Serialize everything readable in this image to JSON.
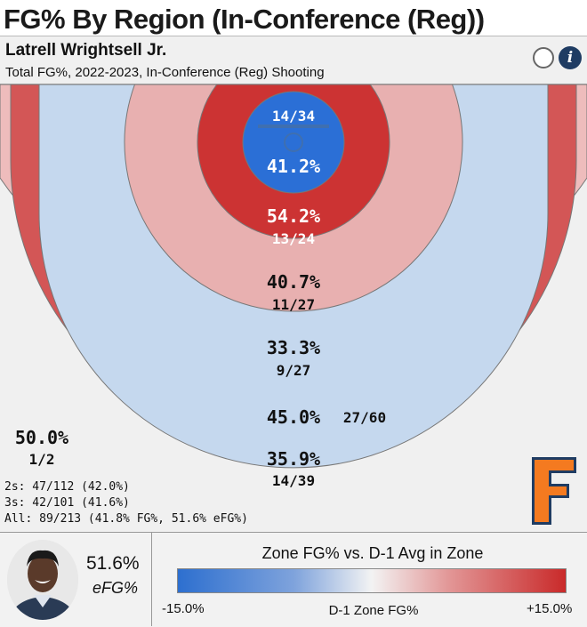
{
  "headline": "FG% By Region (In-Conference (Reg))",
  "player_name": "Latrell Wrightsell Jr.",
  "subtitle": "Total FG%, 2022-2023, In-Conference (Reg) Shooting",
  "info_icon_glyph": "i",
  "chart_data": {
    "type": "heatmap",
    "title": "FG% By Region (In-Conference (Reg))",
    "zones": [
      {
        "zone": "at-rim",
        "fg_pct": "41.2%",
        "made_att": "14/34",
        "made": 14,
        "att": 34,
        "color": "#2b6fd6"
      },
      {
        "zone": "short-paint",
        "fg_pct": "54.2%",
        "made_att": "13/24",
        "made": 13,
        "att": 24,
        "color": "#cc3333"
      },
      {
        "zone": "short-mid-range",
        "fg_pct": "40.7%",
        "made_att": "11/27",
        "made": 11,
        "att": 27,
        "color": "#e8b0b0"
      },
      {
        "zone": "long-mid-range",
        "fg_pct": "33.3%",
        "made_att": "9/27",
        "made": 9,
        "att": 27,
        "color": "#c5d8ee"
      },
      {
        "zone": "long-two-edge",
        "fg_pct": "45.0%",
        "made_att": "27/60",
        "made": 27,
        "att": 60,
        "color": "#d35656"
      },
      {
        "zone": "three-point",
        "fg_pct": "35.9%",
        "made_att": "14/39",
        "made": 14,
        "att": 39,
        "color": "#eebcbc"
      },
      {
        "zone": "corner",
        "fg_pct": "50.0%",
        "made_att": "1/2",
        "made": 1,
        "att": 2,
        "color": "#f0f0f0"
      }
    ],
    "legend": {
      "title": "Zone FG% vs. D-1 Avg in Zone",
      "min_label": "-15.0%",
      "max_label": "+15.0%",
      "caption": "D-1 Zone FG%",
      "min_color": "#2d6fcf",
      "mid_color": "#f3f3f3",
      "max_color": "#c92a2a"
    }
  },
  "summary": {
    "twos": "2s: 47/112 (42.0%)",
    "threes": "3s: 42/101 (41.6%)",
    "all": "All: 89/213 (41.8% FG%, 51.6% eFG%)"
  },
  "efg": {
    "value": "51.6%",
    "label": "eFG%"
  },
  "team_logo": {
    "letter": "F",
    "colors": [
      "#f47a20",
      "#1f3c63"
    ]
  },
  "colors": {
    "text": "#111111",
    "panel_bg": "#f0f0f0"
  }
}
